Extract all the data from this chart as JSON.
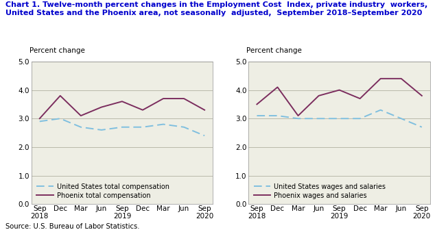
{
  "title_line1": "Chart 1. Twelve-month percent changes in the Employment Cost  Index, private industry  workers,",
  "title_line2": "United States and the Phoenix area, not seasonally  adjusted,  September 2018–September 2020",
  "title_fontsize": 8.0,
  "source": "Source: U.S. Bureau of Labor Statistics.",
  "x_labels": [
    "Sep\n2018",
    "Dec",
    "Mar",
    "Jun",
    "Sep\n2019",
    "Dec",
    "Mar",
    "Jun",
    "Sep\n2020"
  ],
  "left_chart": {
    "ylabel": "Percent change",
    "us_total_comp": [
      2.9,
      3.0,
      2.7,
      2.6,
      2.7,
      2.7,
      2.8,
      2.7,
      2.4
    ],
    "phoenix_total_comp": [
      3.0,
      3.8,
      3.1,
      3.4,
      3.6,
      3.3,
      3.7,
      3.7,
      3.3
    ],
    "legend1": "United States total compensation",
    "legend2": "Phoenix total compensation",
    "ylim": [
      0.0,
      5.0
    ],
    "yticks": [
      0.0,
      1.0,
      2.0,
      3.0,
      4.0,
      5.0
    ]
  },
  "right_chart": {
    "ylabel": "Percent change",
    "us_wages_salaries": [
      3.1,
      3.1,
      3.0,
      3.0,
      3.0,
      3.0,
      3.3,
      3.0,
      2.7
    ],
    "phoenix_wages_salaries": [
      3.5,
      4.1,
      3.1,
      3.8,
      4.0,
      3.7,
      4.4,
      4.4,
      3.8
    ],
    "legend1": "United States wages and salaries",
    "legend2": "Phoenix wages and salaries",
    "ylim": [
      0.0,
      5.0
    ],
    "yticks": [
      0.0,
      1.0,
      2.0,
      3.0,
      4.0,
      5.0
    ]
  },
  "us_color": "#7fbfdf",
  "phoenix_color": "#7B2D5E",
  "grid_color": "#b0b0a0",
  "bg_color": "#eeeee4",
  "title_color": "#0000cc"
}
